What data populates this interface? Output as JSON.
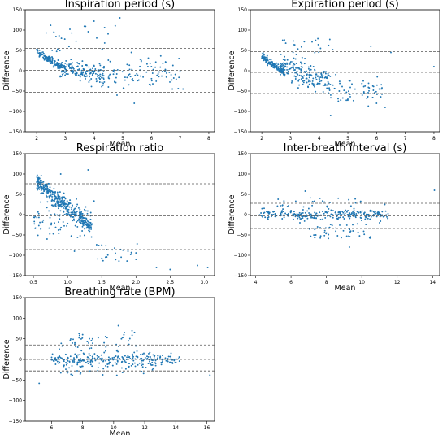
{
  "chart_data": [
    {
      "type": "scatter",
      "title": "Inspiration period (s)",
      "xlabel": "Mean",
      "ylabel": "Difference",
      "xlim": [
        1.6,
        8.2
      ],
      "ylim": [
        -150,
        150
      ],
      "xticks": [
        "2",
        "3",
        "4",
        "5",
        "6",
        "7",
        "8"
      ],
      "yticks": [
        "150",
        "100",
        "50",
        "0",
        "−50",
        "−100",
        "−150"
      ],
      "reference_lines": [
        55,
        1,
        -53
      ],
      "point_color": "#1f77b4",
      "series": [
        {
          "values_sample": [
            [
              2.0,
              52
            ],
            [
              2.1,
              44
            ],
            [
              2.2,
              40
            ],
            [
              2.3,
              30
            ],
            [
              2.4,
              24
            ],
            [
              2.5,
              18
            ],
            [
              2.6,
              12
            ],
            [
              2.8,
              8
            ],
            [
              3.0,
              4
            ],
            [
              3.2,
              0
            ],
            [
              3.4,
              -6
            ],
            [
              3.6,
              -10
            ],
            [
              3.9,
              -20
            ],
            [
              4.2,
              -28
            ],
            [
              4.5,
              -40
            ],
            [
              4.8,
              -60
            ],
            [
              5.4,
              -80
            ],
            [
              6.5,
              20
            ],
            [
              7.1,
              -45
            ],
            [
              4.0,
              122
            ],
            [
              4.9,
              130
            ],
            [
              2.6,
              95
            ],
            [
              5.3,
              45
            ],
            [
              6.0,
              10
            ]
          ]
        }
      ]
    },
    {
      "type": "scatter",
      "title": "Expiration period (s)",
      "xlabel": "Mean",
      "ylabel": "Difference",
      "xlim": [
        1.6,
        8.2
      ],
      "ylim": [
        -150,
        150
      ],
      "xticks": [
        "2",
        "3",
        "4",
        "5",
        "6",
        "7",
        "8"
      ],
      "yticks": [
        "150",
        "100",
        "50",
        "0",
        "−50",
        "−100",
        "−150"
      ],
      "reference_lines": [
        47,
        -4,
        -56
      ],
      "point_color": "#1f77b4",
      "series": [
        {
          "values_sample": [
            [
              2.0,
              30
            ],
            [
              2.2,
              18
            ],
            [
              2.4,
              8
            ],
            [
              2.6,
              0
            ],
            [
              2.8,
              -10
            ],
            [
              3.0,
              20
            ],
            [
              3.2,
              40
            ],
            [
              3.5,
              30
            ],
            [
              3.8,
              10
            ],
            [
              4.0,
              -20
            ],
            [
              4.3,
              -35
            ],
            [
              4.7,
              -50
            ],
            [
              5.0,
              -70
            ],
            [
              5.5,
              -60
            ],
            [
              6.0,
              -80
            ],
            [
              6.3,
              -90
            ],
            [
              8.0,
              10
            ],
            [
              6.5,
              45
            ],
            [
              4.4,
              -110
            ],
            [
              5.8,
              60
            ]
          ]
        }
      ]
    },
    {
      "type": "scatter",
      "title": "Respiration ratio",
      "xlabel": "Mean",
      "ylabel": "Difference",
      "xlim": [
        0.38,
        3.15
      ],
      "ylim": [
        -150,
        150
      ],
      "xticks": [
        "0.5",
        "1.0",
        "1.5",
        "2.0",
        "2.5",
        "3.0"
      ],
      "yticks": [
        "150",
        "100",
        "50",
        "0",
        "−50",
        "−100",
        "−150"
      ],
      "reference_lines": [
        76,
        -3,
        -86
      ],
      "point_color": "#1f77b4",
      "series": [
        {
          "values_sample": [
            [
              0.55,
              80
            ],
            [
              0.65,
              70
            ],
            [
              0.75,
              55
            ],
            [
              0.85,
              40
            ],
            [
              0.95,
              25
            ],
            [
              1.05,
              5
            ],
            [
              1.15,
              -15
            ],
            [
              1.25,
              -35
            ],
            [
              1.35,
              -55
            ],
            [
              1.5,
              -75
            ],
            [
              1.7,
              -95
            ],
            [
              2.0,
              -110
            ],
            [
              2.3,
              -130
            ],
            [
              2.5,
              -135
            ],
            [
              2.9,
              -125
            ],
            [
              3.05,
              -130
            ],
            [
              1.3,
              110
            ],
            [
              0.9,
              100
            ],
            [
              1.1,
              -90
            ],
            [
              0.7,
              -60
            ]
          ]
        }
      ]
    },
    {
      "type": "scatter",
      "title": "Inter-breath interval (s)",
      "xlabel": "Mean",
      "ylabel": "Difference",
      "xlim": [
        3.7,
        14.4
      ],
      "ylim": [
        -150,
        150
      ],
      "xticks": [
        "4",
        "6",
        "8",
        "10",
        "12",
        "14"
      ],
      "yticks": [
        "150",
        "100",
        "50",
        "0",
        "−50",
        "−100",
        "−150"
      ],
      "reference_lines": [
        28,
        -3,
        -34
      ],
      "point_color": "#1f77b4",
      "series": [
        {
          "values_sample": [
            [
              4.5,
              5
            ],
            [
              5.0,
              0
            ],
            [
              5.5,
              -10
            ],
            [
              6.0,
              10
            ],
            [
              6.5,
              -20
            ],
            [
              7.0,
              15
            ],
            [
              7.5,
              -30
            ],
            [
              8.0,
              -45
            ],
            [
              8.5,
              5
            ],
            [
              9.0,
              -10
            ],
            [
              9.5,
              -40
            ],
            [
              10.0,
              0
            ],
            [
              10.5,
              10
            ],
            [
              11.0,
              -20
            ],
            [
              11.3,
              25
            ],
            [
              6.8,
              58
            ],
            [
              9.3,
              -80
            ],
            [
              14.1,
              60
            ],
            [
              5.8,
              20
            ],
            [
              8.2,
              30
            ]
          ]
        }
      ]
    },
    {
      "type": "scatter",
      "title": "Breathing rate (BPM)",
      "xlabel": "Mean",
      "ylabel": "Difference",
      "xlim": [
        4.3,
        16.5
      ],
      "ylim": [
        -150,
        150
      ],
      "xticks": [
        "6",
        "8",
        "10",
        "12",
        "14",
        "16"
      ],
      "yticks": [
        "150",
        "100",
        "50",
        "0",
        "−50",
        "−100",
        "−150"
      ],
      "reference_lines": [
        35,
        0,
        -28
      ],
      "point_color": "#1f77b4",
      "series": [
        {
          "values_sample": [
            [
              5.2,
              -58
            ],
            [
              6.0,
              5
            ],
            [
              6.5,
              25
            ],
            [
              7.0,
              -10
            ],
            [
              7.5,
              40
            ],
            [
              8.0,
              60
            ],
            [
              8.5,
              10
            ],
            [
              9.0,
              -20
            ],
            [
              9.5,
              30
            ],
            [
              10.0,
              0
            ],
            [
              10.5,
              50
            ],
            [
              11.0,
              -10
            ],
            [
              11.5,
              20
            ],
            [
              12.0,
              0
            ],
            [
              12.5,
              -25
            ],
            [
              13.0,
              5
            ],
            [
              13.5,
              -5
            ],
            [
              14.0,
              0
            ],
            [
              16.2,
              -38
            ],
            [
              10.3,
              82
            ]
          ]
        }
      ]
    }
  ]
}
